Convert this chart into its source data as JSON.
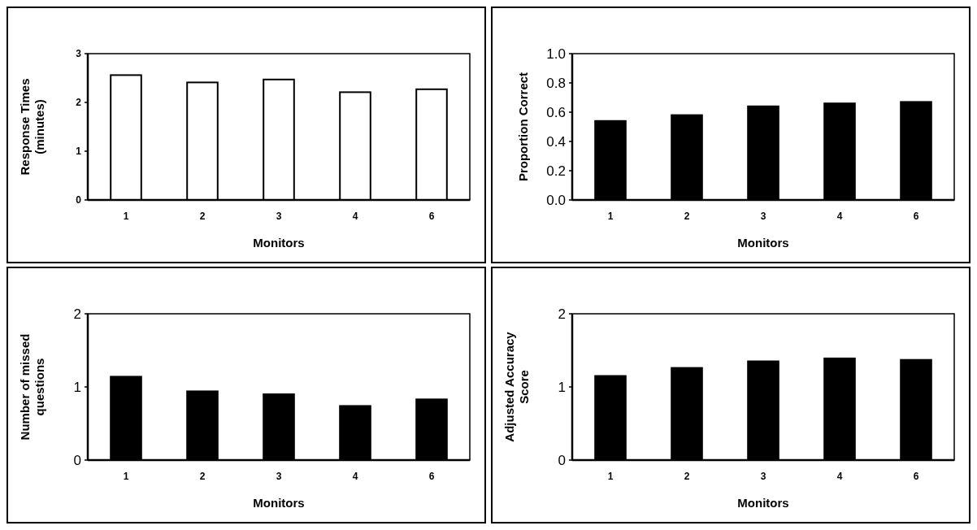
{
  "chart_data": [
    {
      "type": "bar",
      "xlabel": "Monitors",
      "ylabel": "Response Times (minutes)",
      "categories": [
        "1",
        "2",
        "3",
        "4",
        "6"
      ],
      "values": [
        2.56,
        2.41,
        2.47,
        2.21,
        2.27
      ],
      "color": "#ffffff",
      "ylim": [
        0,
        3
      ],
      "yticks": [
        0,
        1,
        2,
        3
      ],
      "grid": false
    },
    {
      "type": "bar",
      "xlabel": "Monitors",
      "ylabel": "Proportion Correct",
      "categories": [
        "1",
        "2",
        "3",
        "4",
        "6"
      ],
      "values": [
        0.54,
        0.58,
        0.64,
        0.66,
        0.67
      ],
      "color": "#000000",
      "ylim": [
        0,
        1
      ],
      "yticks": [
        {
          "value": 0,
          "label": "0.0"
        },
        {
          "value": 0.2,
          "label": "0.2"
        },
        {
          "value": 0.4,
          "label": "0.4"
        },
        {
          "value": 0.6,
          "label": "0.6"
        },
        {
          "value": 0.8,
          "label": "0.8"
        },
        {
          "value": 1,
          "label": "1.0"
        }
      ],
      "grid": false
    },
    {
      "type": "bar",
      "xlabel": "Monitors",
      "ylabel": "Number of missed questions",
      "categories": [
        "1",
        "2",
        "3",
        "4",
        "6"
      ],
      "values": [
        1.14,
        0.94,
        0.9,
        0.74,
        0.83
      ],
      "color": "#000000",
      "ylim": [
        0,
        2
      ],
      "yticks": [
        0,
        1,
        2
      ],
      "grid": false
    },
    {
      "type": "bar",
      "xlabel": "Monitors",
      "ylabel": "Adjusted Accuracy Score",
      "categories": [
        "1",
        "2",
        "3",
        "4",
        "6"
      ],
      "values": [
        1.15,
        1.26,
        1.35,
        1.39,
        1.37
      ],
      "color": "#000000",
      "ylim": [
        0,
        2
      ],
      "yticks": [
        0,
        1,
        2
      ],
      "grid": false
    }
  ]
}
